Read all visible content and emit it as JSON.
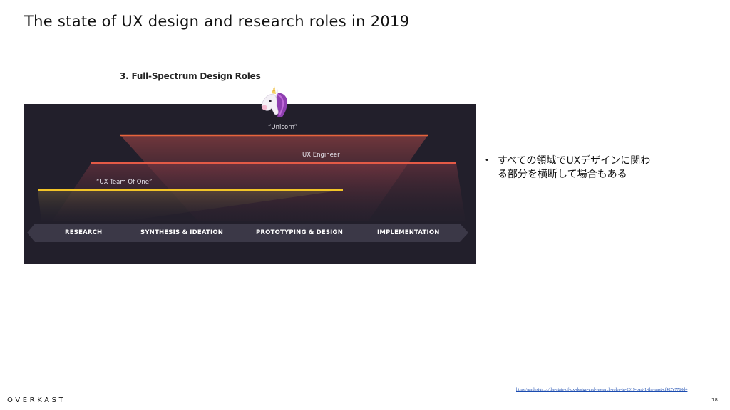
{
  "slide": {
    "title": "The state of UX design and research roles in 2019",
    "brand": "OVERKAST",
    "page_number": "18",
    "source_url": "https://uxdesign.cc/the-state-of-ux-design-and-research-roles-in-2019-part-1-the-past-cf427e7760d4"
  },
  "diagram": {
    "caption": "3. Full-Spectrum Design Roles",
    "roles": [
      {
        "label": "“Unicorn”",
        "color": "#e8643c"
      },
      {
        "label": "UX Engineer",
        "color": "#e45a46"
      },
      {
        "label": "“UX Team Of One”",
        "color": "#f2c428"
      }
    ],
    "phases": [
      "RESEARCH",
      "SYNTHESIS & IDEATION",
      "PROTOTYPING & DESIGN",
      "IMPLEMENTATION"
    ],
    "icon": "unicorn-icon"
  },
  "bullets": [
    "すべての領域でUXデザインに関わる部分を横断して場合もある"
  ]
}
